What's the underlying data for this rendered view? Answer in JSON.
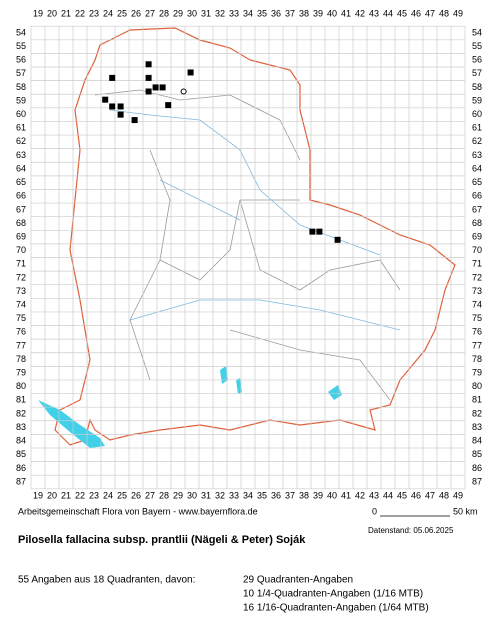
{
  "map": {
    "columns": [
      19,
      20,
      21,
      22,
      23,
      24,
      25,
      26,
      27,
      28,
      29,
      30,
      31,
      32,
      33,
      34,
      35,
      36,
      37,
      38,
      39,
      40,
      41,
      42,
      43,
      44,
      45,
      46,
      47,
      48,
      49
    ],
    "rows": [
      54,
      55,
      56,
      57,
      58,
      59,
      60,
      61,
      62,
      63,
      64,
      65,
      66,
      67,
      68,
      69,
      70,
      71,
      72,
      73,
      74,
      75,
      76,
      77,
      78,
      79,
      80,
      81,
      82,
      83,
      84,
      85,
      86,
      87
    ],
    "markers": [
      {
        "col": 26.9,
        "row": 56.3,
        "symbol": "square"
      },
      {
        "col": 29.9,
        "row": 56.9,
        "symbol": "square"
      },
      {
        "col": 24.3,
        "row": 57.3,
        "symbol": "square"
      },
      {
        "col": 26.9,
        "row": 57.3,
        "symbol": "square"
      },
      {
        "col": 27.4,
        "row": 58.0,
        "symbol": "square"
      },
      {
        "col": 27.9,
        "row": 58.0,
        "symbol": "square"
      },
      {
        "col": 26.9,
        "row": 58.3,
        "symbol": "square"
      },
      {
        "col": 29.4,
        "row": 58.3,
        "symbol": "circle"
      },
      {
        "col": 23.8,
        "row": 58.9,
        "symbol": "square"
      },
      {
        "col": 24.3,
        "row": 59.4,
        "symbol": "square"
      },
      {
        "col": 24.9,
        "row": 59.4,
        "symbol": "square"
      },
      {
        "col": 24.9,
        "row": 60.0,
        "symbol": "square"
      },
      {
        "col": 25.9,
        "row": 60.4,
        "symbol": "square"
      },
      {
        "col": 28.3,
        "row": 59.3,
        "symbol": "square"
      },
      {
        "col": 38.6,
        "row": 68.6,
        "symbol": "square"
      },
      {
        "col": 39.1,
        "row": 68.6,
        "symbol": "square"
      },
      {
        "col": 40.4,
        "row": 69.2,
        "symbol": "square"
      }
    ]
  },
  "footer": {
    "credit": "Arbeitsgemeinschaft Flora von Bayern - www.bayernflora.de",
    "scale_start": "0",
    "scale_end": "50 km",
    "date": "Datenstand: 05.06.2025",
    "title": "Pilosella fallacina subsp. prantlii (Nägeli & Peter) Soják",
    "summary": "55 Angaben aus 18 Quadranten, davon:",
    "counts": [
      "29 Quadranten-Angaben",
      "10 1/4-Quadranten-Angaben (1/16 MTB)",
      "16 1/16-Quadranten-Angaben (1/64 MTB)"
    ]
  }
}
